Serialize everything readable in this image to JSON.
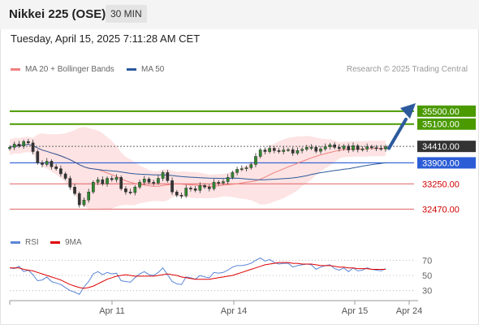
{
  "header": {
    "title": "Nikkei 225 (OSE)",
    "interval": "30 MIN"
  },
  "timestamp": "Tuesday, April 15, 2025 7:11:28 AM CET",
  "legend": {
    "ma20": {
      "label": "MA 20 + Bollinger Bands",
      "color": "#f08080"
    },
    "ma50": {
      "label": "MA 50",
      "color": "#2c5a9c"
    },
    "rsi": {
      "label": "RSI",
      "color": "#5a86d6"
    },
    "ma9": {
      "label": "9MA",
      "color": "#e00000"
    }
  },
  "credit": "Research © 2025 Trading Central",
  "colors": {
    "resistance": "#4a9a00",
    "support": "#2c5dd6",
    "pivot": "#333333",
    "secondary": "#e06060",
    "arrow": "#2c5a9c"
  },
  "chart_data": {
    "type": "candlestick",
    "y_range": [
      31900,
      36300
    ],
    "x_labels": [
      "Apr 11",
      "Apr 14",
      "Apr 15",
      "Apr 24"
    ],
    "levels": [
      {
        "value": 35500,
        "label": "35500.00",
        "type": "resistance"
      },
      {
        "value": 35100,
        "label": "35100.00",
        "type": "resistance"
      },
      {
        "value": 34410,
        "label": "34410.00",
        "type": "pivot"
      },
      {
        "value": 33900,
        "label": "33900.00",
        "type": "support"
      },
      {
        "value": 33250,
        "label": "33250.00",
        "type": "secondary"
      },
      {
        "value": 32470,
        "label": "32470.00",
        "type": "secondary"
      }
    ],
    "price_close": [
      34380,
      34480,
      34420,
      34560,
      34520,
      34250,
      33900,
      33850,
      33950,
      33780,
      33720,
      33560,
      33420,
      33150,
      32950,
      32600,
      32750,
      33000,
      33300,
      33380,
      33250,
      33420,
      33380,
      33450,
      33100,
      33000,
      32980,
      33150,
      33300,
      33400,
      33300,
      33280,
      33420,
      33600,
      33350,
      33000,
      32900,
      32880,
      33120,
      33100,
      33050,
      33200,
      33150,
      33100,
      33300,
      33280,
      33320,
      33450,
      33600,
      33700,
      33720,
      33750,
      33850,
      34100,
      34300,
      34250,
      34350,
      34280,
      34250,
      34300,
      34310,
      34200,
      34280,
      34320,
      34380,
      34380,
      34260,
      34330,
      34400,
      34460,
      34380,
      34340,
      34420,
      34300,
      34430,
      34310,
      34330,
      34400,
      34370,
      34350,
      34330,
      34400
    ],
    "rsi": {
      "levels": [
        70,
        50,
        30
      ],
      "range": [
        20,
        80
      ],
      "values": [
        60,
        59,
        62,
        55,
        57,
        51,
        43,
        44,
        48,
        42,
        40,
        38,
        34,
        30,
        28,
        25,
        35,
        42,
        52,
        55,
        51,
        54,
        52,
        53,
        43,
        42,
        41,
        47,
        52,
        55,
        51,
        50,
        54,
        60,
        51,
        42,
        39,
        38,
        48,
        47,
        45,
        50,
        48,
        47,
        54,
        53,
        54,
        57,
        61,
        63,
        63,
        64,
        66,
        70,
        73,
        69,
        71,
        67,
        65,
        66,
        66,
        61,
        63,
        64,
        65,
        64,
        58,
        61,
        63,
        64,
        59,
        57,
        60,
        55,
        60,
        56,
        57,
        60,
        58,
        57,
        56,
        59
      ],
      "ma9": [
        60,
        60,
        60,
        58,
        57,
        56,
        54,
        52,
        50,
        48,
        46,
        44,
        41,
        38,
        36,
        34,
        33,
        34,
        36,
        39,
        42,
        45,
        47,
        49,
        50,
        51,
        50,
        49,
        49,
        49,
        49,
        49,
        50,
        51,
        52,
        51,
        50,
        48,
        47,
        46,
        45,
        45,
        45,
        45,
        46,
        47,
        48,
        49,
        50,
        52,
        54,
        56,
        58,
        60,
        62,
        64,
        65,
        66,
        67,
        67,
        67,
        66,
        66,
        65,
        65,
        65,
        64,
        63,
        63,
        63,
        62,
        61,
        61,
        60,
        60,
        59,
        59,
        59,
        58,
        58,
        58,
        58
      ]
    }
  }
}
